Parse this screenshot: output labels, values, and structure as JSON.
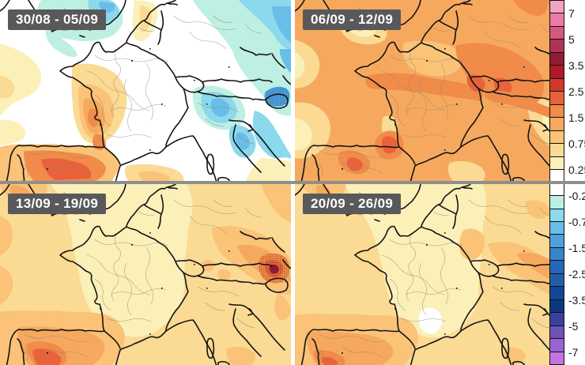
{
  "panels": [
    {
      "id": "week1",
      "label": "30/08 - 05/09"
    },
    {
      "id": "week2",
      "label": "06/09 - 12/09"
    },
    {
      "id": "week3",
      "label": "13/09 - 19/09"
    },
    {
      "id": "week4",
      "label": "20/09 - 26/09"
    }
  ],
  "palette": {
    "pink_hi": "#f2a2c4",
    "pink": "#ec79a8",
    "rose": "#d45880",
    "rose_dk": "#b03355",
    "maroon": "#8c1d36",
    "red_dk": "#ae1a28",
    "red": "#d2392b",
    "verm": "#e8623c",
    "orange_dp": "#f08b4a",
    "orange": "#f6a95e",
    "orange_lt": "#fac377",
    "peach": "#fbda94",
    "cream": "#fbf0b8",
    "white": "#ffffff",
    "cyan_pl": "#bdf0e2",
    "cyan": "#8cd8ec",
    "sky": "#68bee8",
    "blue_lt": "#4fa0dc",
    "blue": "#3884cc",
    "blue_md": "#2766b8",
    "blue_dk": "#1f5fa8",
    "navy": "#12479a",
    "navy_dk": "#0c3880",
    "indigo": "#3c3f9e",
    "purple": "#6f52b8",
    "violet": "#9a64d2",
    "orchid": "#c473e4"
  },
  "colorbar": {
    "tick_labels": [
      "7",
      "5",
      "3.5",
      "2.5",
      "1.5",
      "0.75",
      "0.25",
      "-0.25",
      "-0.75",
      "-1.5",
      "-2.5",
      "-3.5",
      "-5",
      "-7"
    ],
    "segments": [
      {
        "key": "pink_hi",
        "label_below": "7"
      },
      {
        "key": "pink",
        "label_below": null
      },
      {
        "key": "rose",
        "label_below": "5"
      },
      {
        "key": "rose_dk",
        "label_below": null
      },
      {
        "key": "maroon",
        "label_below": "3.5"
      },
      {
        "key": "red_dk",
        "label_below": null
      },
      {
        "key": "red",
        "label_below": "2.5"
      },
      {
        "key": "verm",
        "label_below": null
      },
      {
        "key": "orange_dp",
        "label_below": "1.5"
      },
      {
        "key": "orange",
        "label_below": null
      },
      {
        "key": "orange_lt",
        "label_below": "0.75"
      },
      {
        "key": "peach",
        "label_below": null
      },
      {
        "key": "cream",
        "label_below": "0.25"
      },
      {
        "key": "white",
        "label_below": null
      },
      {
        "key": "white",
        "label_below": "-0.25"
      },
      {
        "key": "cyan_pl",
        "label_below": null
      },
      {
        "key": "cyan",
        "label_below": "-0.75"
      },
      {
        "key": "sky",
        "label_below": null
      },
      {
        "key": "blue_lt",
        "label_below": "-1.5"
      },
      {
        "key": "blue",
        "label_below": null
      },
      {
        "key": "blue_md",
        "label_below": "-2.5"
      },
      {
        "key": "blue_dk",
        "label_below": null
      },
      {
        "key": "navy",
        "label_below": "-3.5"
      },
      {
        "key": "navy_dk",
        "label_below": null
      },
      {
        "key": "indigo",
        "label_below": "-5"
      },
      {
        "key": "purple",
        "label_below": null
      },
      {
        "key": "violet",
        "label_below": "-7"
      },
      {
        "key": "orchid",
        "label_below": null
      }
    ]
  },
  "colors": {
    "panel_label_bg": "#59595b",
    "panel_label_text": "#ffffff",
    "divider_horizontal": "#8e8e8e",
    "divider_vertical": "#ffffff",
    "coastline": "#141414",
    "admin_line": "#8a8874"
  }
}
